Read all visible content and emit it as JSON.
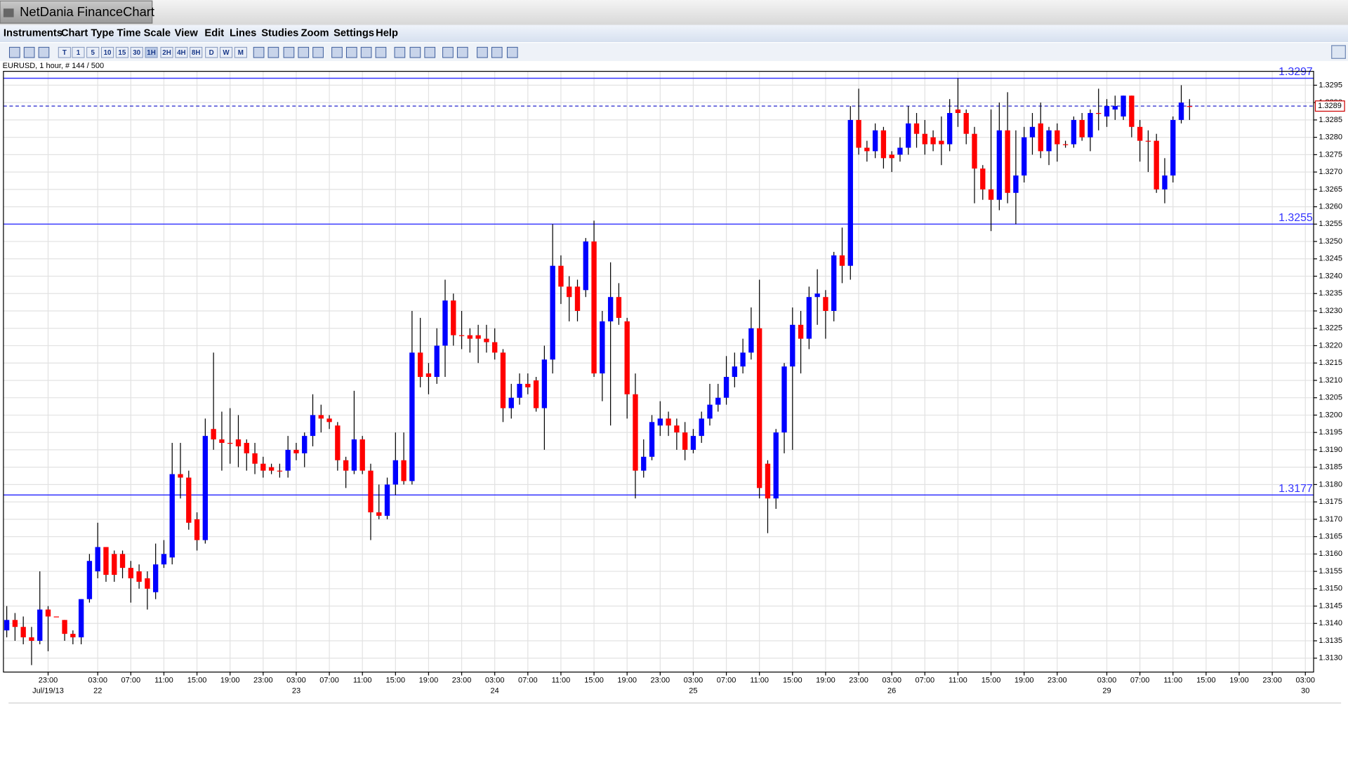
{
  "window_title": "NetDania FinanceChart",
  "menu": [
    "Instruments",
    "Chart Type",
    "Time Scale",
    "View",
    "Edit",
    "Lines",
    "Studies",
    "Zoom",
    "Settings",
    "Help"
  ],
  "toolbar": {
    "timescales": [
      "T",
      "1",
      "5",
      "10",
      "15",
      "30",
      "1H",
      "2H",
      "4H",
      "8H",
      "D",
      "W",
      "M"
    ]
  },
  "chart_data": {
    "type": "candlestick",
    "info": "EURUSD, 1 hour, # 144 / 500",
    "up_color": "#0000ff",
    "down_color": "#ff0000",
    "grid": true,
    "open": [
      1.3138,
      1.3141,
      1.3139,
      1.3136,
      1.3135,
      1.3144,
      1.3142,
      1.3141,
      1.3137,
      1.3136,
      1.3147,
      1.3155,
      1.3162,
      1.316,
      1.316,
      1.3156,
      1.3155,
      1.3153,
      1.3149,
      1.3157,
      1.3159,
      1.3183,
      1.3182,
      1.317,
      1.3164,
      1.3196,
      1.3193,
      1.3192,
      1.3193,
      1.3192,
      1.3189,
      1.3186,
      1.3185,
      1.3184,
      1.3184,
      1.319,
      1.3189,
      1.3194,
      1.32,
      1.3199,
      1.3197,
      1.3187,
      1.3184,
      1.3193,
      1.3184,
      1.3172,
      1.3171,
      1.318,
      1.3187,
      1.3181,
      1.3218,
      1.3212,
      1.3211,
      1.322,
      1.3233,
      1.3223,
      1.3223,
      1.3223,
      1.3222,
      1.3221,
      1.3218,
      1.3202,
      1.3205,
      1.3209,
      1.321,
      1.3202,
      1.3216,
      1.3243,
      1.3237,
      1.3237,
      1.3236,
      1.325,
      1.3212,
      1.3227,
      1.3234,
      1.3227,
      1.3206,
      1.3184,
      1.3188,
      1.3197,
      1.3199,
      1.3197,
      1.3195,
      1.319,
      1.3194,
      1.3199,
      1.3203,
      1.3205,
      1.3211,
      1.3214,
      1.3218,
      1.3225,
      1.3186,
      1.3176,
      1.3195,
      1.3214,
      1.3226,
      1.3222,
      1.3234,
      1.3234,
      1.323,
      1.3246,
      1.3243,
      1.3285,
      1.3277,
      1.3276,
      1.3282,
      1.3275,
      1.3275,
      1.3277,
      1.3284,
      1.3281,
      1.328,
      1.3279,
      1.3278,
      1.3288,
      1.3287,
      1.3281,
      1.3271,
      1.3265,
      1.3262,
      1.3282,
      1.3264,
      1.3269,
      1.328,
      1.3284,
      1.3276,
      1.3282,
      1.3278,
      1.3278,
      1.3285,
      1.328,
      1.3287,
      1.3286,
      1.3288,
      1.3286,
      1.3292,
      1.3283,
      1.3279,
      1.3279,
      1.3265,
      1.3269,
      1.3285,
      1.3289
    ],
    "high": [
      1.3145,
      1.3143,
      1.3142,
      1.3139,
      1.3155,
      1.3145,
      1.3142,
      1.3141,
      1.3138,
      1.3147,
      1.316,
      1.3169,
      1.3162,
      1.3161,
      1.3161,
      1.3158,
      1.3157,
      1.3155,
      1.3163,
      1.3164,
      1.3192,
      1.3192,
      1.3184,
      1.3172,
      1.3199,
      1.3218,
      1.3201,
      1.3202,
      1.32,
      1.3193,
      1.3192,
      1.3188,
      1.3186,
      1.3186,
      1.3194,
      1.3192,
      1.3195,
      1.3206,
      1.3203,
      1.32,
      1.3198,
      1.3188,
      1.3207,
      1.3194,
      1.3186,
      1.318,
      1.3182,
      1.3195,
      1.3195,
      1.323,
      1.3228,
      1.3215,
      1.3225,
      1.3239,
      1.3235,
      1.323,
      1.3225,
      1.3226,
      1.3226,
      1.3225,
      1.3219,
      1.3209,
      1.3212,
      1.3212,
      1.3211,
      1.322,
      1.3255,
      1.3246,
      1.324,
      1.3239,
      1.3251,
      1.3256,
      1.323,
      1.3244,
      1.3238,
      1.3228,
      1.3212,
      1.3193,
      1.32,
      1.3204,
      1.3201,
      1.3199,
      1.3198,
      1.3196,
      1.3201,
      1.3209,
      1.3209,
      1.3217,
      1.3218,
      1.3222,
      1.3231,
      1.3239,
      1.3187,
      1.3196,
      1.3215,
      1.3231,
      1.323,
      1.3237,
      1.3242,
      1.3236,
      1.3247,
      1.3254,
      1.3289,
      1.3294,
      1.3279,
      1.3284,
      1.3283,
      1.3276,
      1.328,
      1.3289,
      1.3287,
      1.3285,
      1.3282,
      1.3286,
      1.3291,
      1.3297,
      1.3288,
      1.3283,
      1.3272,
      1.3288,
      1.329,
      1.3293,
      1.3282,
      1.3283,
      1.3287,
      1.329,
      1.3283,
      1.3284,
      1.3279,
      1.3286,
      1.3287,
      1.3288,
      1.3294,
      1.3291,
      1.3292,
      1.3292,
      1.3292,
      1.3285,
      1.3282,
      1.3281,
      1.3274,
      1.3286,
      1.3295,
      1.3291
    ],
    "low": [
      1.3136,
      1.3135,
      1.3134,
      1.3128,
      1.3134,
      1.3132,
      1.3142,
      1.3135,
      1.3134,
      1.3134,
      1.3146,
      1.3153,
      1.3152,
      1.3152,
      1.3153,
      1.3146,
      1.315,
      1.3144,
      1.3147,
      1.3156,
      1.3157,
      1.3176,
      1.3167,
      1.3161,
      1.3163,
      1.319,
      1.3184,
      1.3186,
      1.3185,
      1.3184,
      1.3183,
      1.3182,
      1.3183,
      1.3182,
      1.3182,
      1.3187,
      1.3185,
      1.3191,
      1.3195,
      1.3196,
      1.3184,
      1.3179,
      1.3183,
      1.3183,
      1.3164,
      1.317,
      1.317,
      1.3177,
      1.318,
      1.318,
      1.3208,
      1.3206,
      1.3209,
      1.3211,
      1.322,
      1.3219,
      1.3218,
      1.3215,
      1.3218,
      1.3216,
      1.3198,
      1.3199,
      1.3203,
      1.3206,
      1.3201,
      1.319,
      1.3212,
      1.3232,
      1.3227,
      1.3227,
      1.3234,
      1.3211,
      1.3204,
      1.3197,
      1.3226,
      1.3199,
      1.3176,
      1.3182,
      1.3187,
      1.3194,
      1.3194,
      1.319,
      1.3187,
      1.3189,
      1.3192,
      1.3197,
      1.3201,
      1.3203,
      1.3208,
      1.3212,
      1.3216,
      1.3176,
      1.3166,
      1.3173,
      1.3189,
      1.319,
      1.3212,
      1.3219,
      1.3226,
      1.3222,
      1.3227,
      1.3238,
      1.3239,
      1.3275,
      1.3273,
      1.3274,
      1.3271,
      1.327,
      1.3273,
      1.3275,
      1.3277,
      1.3275,
      1.3276,
      1.3272,
      1.3276,
      1.3283,
      1.3278,
      1.3261,
      1.3262,
      1.3253,
      1.3259,
      1.3261,
      1.3255,
      1.3267,
      1.3275,
      1.3274,
      1.3272,
      1.3273,
      1.3277,
      1.3277,
      1.3279,
      1.3276,
      1.3282,
      1.3283,
      1.3285,
      1.3285,
      1.328,
      1.3273,
      1.327,
      1.3264,
      1.3261,
      1.3267,
      1.3284,
      1.3285
    ],
    "close": [
      1.3141,
      1.3139,
      1.3136,
      1.3135,
      1.3144,
      1.3142,
      1.3142,
      1.3137,
      1.3136,
      1.3147,
      1.3158,
      1.3162,
      1.3154,
      1.3154,
      1.3156,
      1.3153,
      1.3152,
      1.315,
      1.3157,
      1.316,
      1.3183,
      1.3182,
      1.3169,
      1.3164,
      1.3194,
      1.3193,
      1.3192,
      1.3192,
      1.3191,
      1.3189,
      1.3186,
      1.3184,
      1.3184,
      1.3184,
      1.319,
      1.3189,
      1.3194,
      1.32,
      1.3199,
      1.3198,
      1.3187,
      1.3184,
      1.3193,
      1.3184,
      1.3172,
      1.3171,
      1.318,
      1.3187,
      1.3181,
      1.3218,
      1.3211,
      1.3211,
      1.322,
      1.3233,
      1.3223,
      1.3223,
      1.3222,
      1.3222,
      1.3221,
      1.3218,
      1.3202,
      1.3205,
      1.3209,
      1.3208,
      1.3202,
      1.3216,
      1.3243,
      1.3237,
      1.3234,
      1.323,
      1.325,
      1.3212,
      1.3227,
      1.3234,
      1.3228,
      1.3206,
      1.3184,
      1.3188,
      1.3198,
      1.3199,
      1.3197,
      1.3195,
      1.319,
      1.3194,
      1.3199,
      1.3203,
      1.3205,
      1.3211,
      1.3214,
      1.3218,
      1.3225,
      1.3179,
      1.3176,
      1.3195,
      1.3214,
      1.3226,
      1.3222,
      1.3234,
      1.3235,
      1.323,
      1.3246,
      1.3243,
      1.3285,
      1.3277,
      1.3276,
      1.3282,
      1.3274,
      1.3274,
      1.3277,
      1.3284,
      1.3281,
      1.3278,
      1.3278,
      1.3278,
      1.3287,
      1.3287,
      1.3281,
      1.3271,
      1.3265,
      1.3262,
      1.3282,
      1.3264,
      1.3269,
      1.328,
      1.3283,
      1.3276,
      1.3282,
      1.3278,
      1.3278,
      1.3285,
      1.328,
      1.3287,
      1.3287,
      1.3289,
      1.3289,
      1.3292,
      1.3283,
      1.3279,
      1.3279,
      1.3265,
      1.3269,
      1.3285,
      1.329,
      1.3289
    ],
    "xlim": [
      -0.4,
      158
    ],
    "xticks": [
      {
        "value": 5,
        "label": "23:00"
      },
      {
        "value": 11,
        "label": "03:00"
      },
      {
        "value": 15,
        "label": "07:00"
      },
      {
        "value": 19,
        "label": "11:00"
      },
      {
        "value": 23,
        "label": "15:00"
      },
      {
        "value": 27,
        "label": "19:00"
      },
      {
        "value": 31,
        "label": "23:00"
      },
      {
        "value": 35,
        "label": "03:00"
      },
      {
        "value": 39,
        "label": "07:00"
      },
      {
        "value": 43,
        "label": "11:00"
      },
      {
        "value": 47,
        "label": "15:00"
      },
      {
        "value": 51,
        "label": "19:00"
      },
      {
        "value": 55,
        "label": "23:00"
      },
      {
        "value": 59,
        "label": "03:00"
      },
      {
        "value": 63,
        "label": "07:00"
      },
      {
        "value": 67,
        "label": "11:00"
      },
      {
        "value": 71,
        "label": "15:00"
      },
      {
        "value": 75,
        "label": "19:00"
      },
      {
        "value": 79,
        "label": "23:00"
      },
      {
        "value": 83,
        "label": "03:00"
      },
      {
        "value": 87,
        "label": "07:00"
      },
      {
        "value": 91,
        "label": "11:00"
      },
      {
        "value": 95,
        "label": "15:00"
      },
      {
        "value": 99,
        "label": "19:00"
      },
      {
        "value": 103,
        "label": "23:00"
      },
      {
        "value": 107,
        "label": "03:00"
      },
      {
        "value": 111,
        "label": "07:00"
      },
      {
        "value": 115,
        "label": "11:00"
      },
      {
        "value": 119,
        "label": "15:00"
      },
      {
        "value": 123,
        "label": "19:00"
      },
      {
        "value": 127,
        "label": "23:00"
      },
      {
        "value": 133,
        "label": "03:00"
      },
      {
        "value": 137,
        "label": "07:00"
      },
      {
        "value": 141,
        "label": "11:00"
      },
      {
        "value": 145,
        "label": "15:00"
      },
      {
        "value": 149,
        "label": "19:00"
      },
      {
        "value": 153,
        "label": "23:00"
      },
      {
        "value": 157,
        "label": "03:00"
      }
    ],
    "xdates": [
      {
        "value": 5,
        "label": "Jul/19/13"
      },
      {
        "value": 11,
        "label": "22"
      },
      {
        "value": 35,
        "label": "23"
      },
      {
        "value": 59,
        "label": "24"
      },
      {
        "value": 83,
        "label": "25"
      },
      {
        "value": 107,
        "label": "26"
      },
      {
        "value": 133,
        "label": "29"
      },
      {
        "value": 157,
        "label": "30"
      }
    ],
    "ylim": [
      1.3126,
      1.3299
    ],
    "yticks": [
      {
        "value": 1.313,
        "label": "1.3130"
      },
      1.3135,
      {
        "value": 1.314,
        "label": "1.3140"
      },
      1.3145,
      {
        "value": 1.315,
        "label": "1.3150"
      },
      1.3155,
      {
        "value": 1.316,
        "label": "1.3160"
      },
      1.3165,
      {
        "value": 1.317,
        "label": "1.3170"
      },
      1.3175,
      {
        "value": 1.318,
        "label": "1.3180"
      },
      1.3185,
      {
        "value": 1.319,
        "label": "1.3190"
      },
      1.3195,
      {
        "value": 1.32,
        "label": "1.3200"
      },
      1.3205,
      {
        "value": 1.321,
        "label": "1.3210"
      },
      1.3215,
      {
        "value": 1.322,
        "label": "1.3220"
      },
      1.3225,
      {
        "value": 1.323,
        "label": "1.3230"
      },
      1.3235,
      {
        "value": 1.324,
        "label": "1.3240"
      },
      1.3245,
      {
        "value": 1.325,
        "label": "1.3250"
      },
      1.3255,
      {
        "value": 1.326,
        "label": "1.3260"
      },
      1.3265,
      {
        "value": 1.327,
        "label": "1.3270"
      },
      1.3275,
      {
        "value": 1.328,
        "label": "1.3280"
      },
      1.3285,
      {
        "value": 1.329,
        "label": "1.3290"
      },
      1.3295
    ],
    "levels": [
      1.3297,
      1.3255,
      1.3177
    ],
    "level_color": "#3333ff",
    "last_price": 1.3289,
    "last_price_color": "#cc0000"
  }
}
